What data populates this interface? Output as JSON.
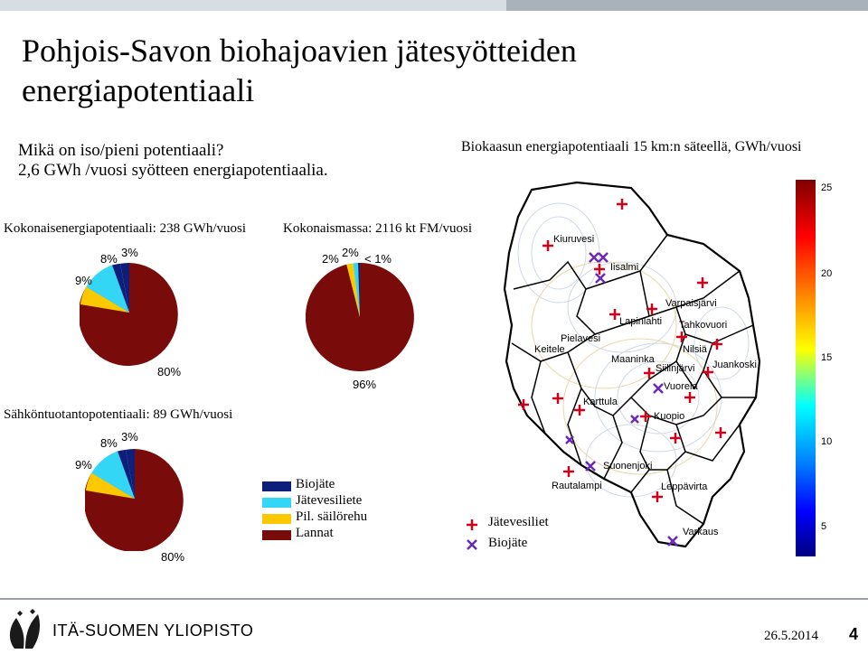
{
  "slide": {
    "title": "Pohjois-Savon biohajoavien jätesyötteiden energiapotentiaali",
    "question": "Mikä on iso/pieni potentiaali?",
    "note": "2,6 GWh /vuosi syötteen energiapotentiaalia.",
    "map_title": "Biokaasun energiapotentiaali 15 km:n säteellä, GWh/vuosi",
    "date": "26.5.2014",
    "page_number": "4",
    "logo_text": "ITÄ-SUOMEN YLIOPISTO"
  },
  "charts": {
    "total": {
      "title": "Kokonaisenergiapotentiaali: 238 GWh/vuosi",
      "labels": [
        "80%",
        "9%",
        "8%",
        "3%"
      ]
    },
    "mass": {
      "title": "Kokonaismassa: 2116 kt FM/vuosi",
      "labels": [
        "96%",
        "2%",
        "2%",
        "< 1%"
      ]
    },
    "electricity": {
      "title": "Sähköntuotantopotentiaali: 89 GWh/vuosi",
      "labels": [
        "80%",
        "9%",
        "8%",
        "3%"
      ]
    }
  },
  "chart_data": [
    {
      "type": "pie",
      "title": "Kokonaisenergiapotentiaali: 238 GWh/vuosi",
      "categories": [
        "Lannat",
        "Pil. säilörehu",
        "Jätevesiliete",
        "Biojäte"
      ],
      "values": [
        80,
        9,
        8,
        3
      ]
    },
    {
      "type": "pie",
      "title": "Kokonaismassa: 2116 kt FM/vuosi",
      "categories": [
        "Lannat",
        "Pil. säilörehu",
        "Jätevesiliete",
        "Biojäte"
      ],
      "values": [
        96,
        2,
        2,
        0.5
      ]
    },
    {
      "type": "pie",
      "title": "Sähköntuotantopotentiaali: 89 GWh/vuosi",
      "categories": [
        "Lannat",
        "Pil. säilörehu",
        "Jätevesiliete",
        "Biojäte"
      ],
      "values": [
        80,
        9,
        8,
        3
      ]
    }
  ],
  "pie_legend": [
    {
      "label": "Biojäte",
      "color": "#0d1f7a"
    },
    {
      "label": "Jätevesiliete",
      "color": "#33d6f5"
    },
    {
      "label": "Pil. säilörehu",
      "color": "#fcc800"
    },
    {
      "label": "Lannat",
      "color": "#7a0b0b"
    }
  ],
  "map_legend": [
    {
      "label": "Jätevesiliet",
      "marker": "plus",
      "color": "#d0021b"
    },
    {
      "label": "Biojäte",
      "marker": "cross",
      "color": "#6a28b4"
    }
  ],
  "colorbar": {
    "ticks": [
      "25",
      "20",
      "15",
      "10",
      "5"
    ],
    "colors_top_to_bottom": [
      "#7f0000",
      "#ff0000",
      "#ff8000",
      "#ffff00",
      "#00ffff",
      "#0080ff",
      "#0000ff",
      "#00007f"
    ]
  },
  "map_places": [
    "Kiuruvesi",
    "Iisalmi",
    "Varpaisjärvi",
    "Lapinlahti",
    "Tahkovuori",
    "Pielavesi",
    "Keitele",
    "Nilsiä",
    "Maaninka",
    "Juankoski",
    "Siilinjärvi",
    "Vuorela",
    "Karttula",
    "Kuopio",
    "Suonenjoki",
    "Rautalampi",
    "Leppävirta",
    "Varkaus"
  ]
}
